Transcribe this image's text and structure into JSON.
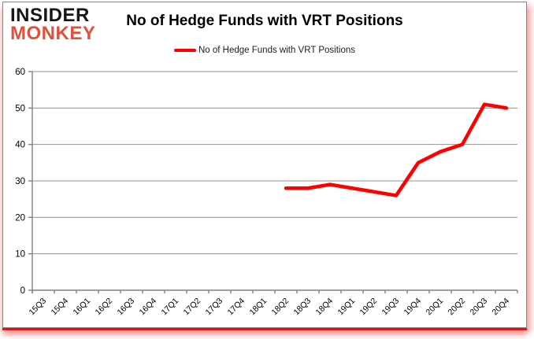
{
  "brand": {
    "line1": "INSIDER",
    "line2": "MONKEY",
    "line1_color": "#161616",
    "line2_color": "#e2503c"
  },
  "header": {
    "title": "No of Hedge Funds with VRT Positions"
  },
  "legend": {
    "label": "No of Hedge Funds with VRT Positions",
    "marker_color": "#ff0000"
  },
  "chart_data": {
    "type": "line",
    "title": "No of Hedge Funds with VRT Positions",
    "categories": [
      "15Q3",
      "15Q4",
      "16Q1",
      "16Q2",
      "16Q3",
      "16Q4",
      "17Q1",
      "17Q2",
      "17Q3",
      "17Q4",
      "18Q1",
      "18Q2",
      "18Q3",
      "18Q4",
      "19Q1",
      "19Q2",
      "19Q3",
      "19Q4",
      "20Q1",
      "20Q2",
      "20Q3",
      "20Q4"
    ],
    "series": [
      {
        "name": "No of Hedge Funds with VRT Positions",
        "color": "#ff0000",
        "values": [
          null,
          null,
          null,
          null,
          null,
          null,
          null,
          null,
          null,
          null,
          null,
          28,
          28,
          29,
          28,
          27,
          26,
          35,
          38,
          40,
          51,
          50
        ]
      }
    ],
    "ylim": [
      0,
      60
    ],
    "yticks": [
      0,
      10,
      20,
      30,
      40,
      50,
      60
    ],
    "grid": true,
    "legend_position": "top",
    "grid_color": "#909090",
    "axis_color": "#7f7f7f",
    "tick_label_color": "#000000",
    "xlabel": "",
    "ylabel": ""
  }
}
